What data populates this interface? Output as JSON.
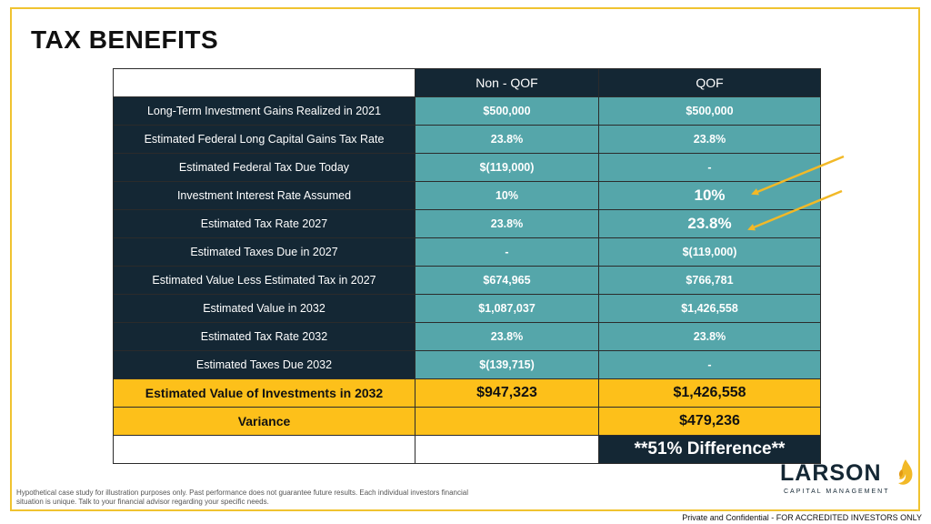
{
  "slide": {
    "title": "TAX BENEFITS",
    "table": {
      "headers": [
        "",
        "Non - QOF",
        "QOF"
      ],
      "rows": [
        {
          "label": "Long-Term Investment Gains Realized in 2021",
          "non_qof": "$500,000",
          "qof": "$500,000"
        },
        {
          "label": "Estimated Federal Long Capital Gains Tax Rate",
          "non_qof": "23.8%",
          "qof": "23.8%"
        },
        {
          "label": "Estimated Federal Tax Due Today",
          "non_qof": "$(119,000)",
          "qof": "-"
        },
        {
          "label": "Investment Interest Rate Assumed",
          "non_qof": "10%",
          "qof": "10%"
        },
        {
          "label": "Estimated Tax Rate 2027",
          "non_qof": "23.8%",
          "qof": "23.8%"
        },
        {
          "label": "Estimated Taxes Due in 2027",
          "non_qof": "-",
          "qof": "$(119,000)"
        },
        {
          "label": "Estimated Value Less Estimated Tax in 2027",
          "non_qof": "$674,965",
          "qof": "$766,781"
        },
        {
          "label": "Estimated Value in 2032",
          "non_qof": "$1,087,037",
          "qof": "$1,426,558"
        },
        {
          "label": "Estimated Tax Rate 2032",
          "non_qof": "23.8%",
          "qof": "23.8%"
        },
        {
          "label": "Estimated Taxes Due 2032",
          "non_qof": "$(139,715)",
          "qof": "-"
        }
      ],
      "total": {
        "label": "Estimated Value of Investments in 2032",
        "non_qof": "$947,323",
        "qof": "$1,426,558"
      },
      "variance": {
        "label": "Variance",
        "non_qof": "",
        "qof": "$479,236"
      },
      "difference": "**51% Difference**"
    },
    "disclaimer": "Hypothetical case study for illustration purposes only.  Past performance does not guarantee future results. Each individual investors financial situation is unique. Talk to your financial advisor regarding your specific needs.",
    "logo": {
      "name": "LARSON",
      "subtitle": "CAPITAL MANAGEMENT"
    },
    "footer": "Private and Confidential - FOR ACCREDITED INVESTORS ONLY",
    "colors": {
      "navy": "#142734",
      "teal": "#55a6aa",
      "gold": "#fdc01a",
      "arrow": "#f2b927"
    },
    "icons": [
      "highlight-arrow-icon",
      "flame-icon"
    ]
  }
}
